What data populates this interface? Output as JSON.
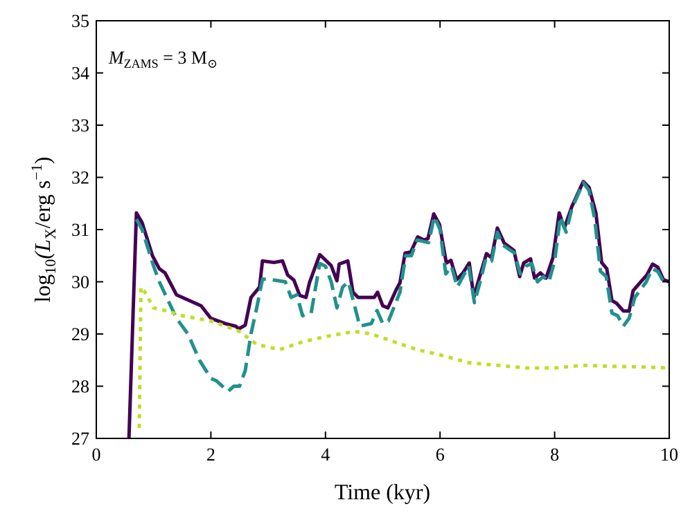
{
  "chart_data": {
    "type": "line",
    "x_label": "Time (kyr)",
    "y_label": {
      "prefix": "log",
      "prefix_sub": "10",
      "open": "(L",
      "sub": "X",
      "mid": "/erg s",
      "sup": "−1",
      "close": ")"
    },
    "annotation": {
      "symbol": "M",
      "symbol_sub": "ZAMS",
      "rest": " = 3 M",
      "unit_sub": "⊙"
    },
    "xlim": [
      0,
      10
    ],
    "xticks": [
      0,
      2,
      4,
      6,
      8,
      10
    ],
    "ylim": [
      27,
      35
    ],
    "yticks": [
      27,
      28,
      29,
      30,
      31,
      32,
      33,
      34,
      35
    ],
    "series": [
      {
        "color": "#440154",
        "dash": "solid",
        "x": [
          0.57,
          0.7,
          0.8,
          0.98,
          1.1,
          1.2,
          1.4,
          1.83,
          2.0,
          2.25,
          2.43,
          2.49,
          2.6,
          2.7,
          2.85,
          2.9,
          3.1,
          3.25,
          3.34,
          3.45,
          3.55,
          3.66,
          3.72,
          3.9,
          4.1,
          4.2,
          4.24,
          4.39,
          4.48,
          4.57,
          4.85,
          4.91,
          5.0,
          5.09,
          5.24,
          5.3,
          5.39,
          5.49,
          5.61,
          5.72,
          5.79,
          5.89,
          5.99,
          6.11,
          6.19,
          6.29,
          6.4,
          6.51,
          6.59,
          6.66,
          6.81,
          6.9,
          7.0,
          7.12,
          7.29,
          7.39,
          7.46,
          7.58,
          7.65,
          7.75,
          7.85,
          7.97,
          8.08,
          8.17,
          8.3,
          8.5,
          8.6,
          8.72,
          8.82,
          8.91,
          9.0,
          9.08,
          9.2,
          9.3,
          9.37,
          9.52,
          9.61,
          9.71,
          9.8,
          9.9,
          10.0
        ],
        "values": [
          27.0,
          31.32,
          31.13,
          30.5,
          30.25,
          30.17,
          29.75,
          29.54,
          29.3,
          29.2,
          29.15,
          29.1,
          29.17,
          29.7,
          29.9,
          30.4,
          30.37,
          30.4,
          30.13,
          30.03,
          29.74,
          29.7,
          29.98,
          30.52,
          30.31,
          30.02,
          30.34,
          30.4,
          29.8,
          29.7,
          29.7,
          29.8,
          29.54,
          29.5,
          29.86,
          29.98,
          30.55,
          30.57,
          30.86,
          30.8,
          30.83,
          31.3,
          31.1,
          30.36,
          30.41,
          30.04,
          30.17,
          30.36,
          29.7,
          29.98,
          30.54,
          30.46,
          31.03,
          30.74,
          30.6,
          30.1,
          30.36,
          30.44,
          30.07,
          30.17,
          30.07,
          30.46,
          31.32,
          31.03,
          31.44,
          31.92,
          31.81,
          31.32,
          30.37,
          30.25,
          29.64,
          29.59,
          29.44,
          29.44,
          29.83,
          30.02,
          30.13,
          30.34,
          30.28,
          30.04,
          30.0
        ]
      },
      {
        "color": "#21918c",
        "dash": "dashed",
        "x": [
          0.7,
          0.8,
          1.0,
          1.1,
          1.4,
          1.6,
          1.8,
          2.0,
          2.1,
          2.3,
          2.4,
          2.5,
          2.6,
          2.7,
          2.8,
          2.9,
          3.0,
          3.3,
          3.4,
          3.5,
          3.6,
          3.75,
          3.9,
          4.0,
          4.1,
          4.2,
          4.3,
          4.4,
          4.6,
          4.8,
          4.9,
          5.0,
          5.1,
          5.3,
          5.4,
          5.5,
          5.6,
          5.8,
          5.9,
          6.0,
          6.1,
          6.2,
          6.3,
          6.4,
          6.5,
          6.6,
          6.7,
          6.8,
          6.9,
          7.0,
          7.1,
          7.3,
          7.4,
          7.5,
          7.6,
          7.7,
          7.8,
          7.9,
          8.0,
          8.1,
          8.2,
          8.3,
          8.5,
          8.6,
          8.7,
          8.8,
          8.9,
          9.0,
          9.1,
          9.2,
          9.3,
          9.4,
          9.6,
          9.7,
          9.8,
          9.9,
          10.0
        ],
        "values": [
          31.2,
          31.0,
          30.3,
          30.0,
          29.3,
          29.0,
          28.5,
          28.15,
          28.1,
          27.9,
          28.0,
          28.0,
          28.3,
          29.0,
          29.5,
          30.05,
          30.05,
          30.0,
          29.7,
          29.75,
          29.35,
          29.4,
          30.35,
          30.3,
          30.0,
          29.5,
          29.9,
          30.0,
          29.15,
          29.2,
          29.45,
          29.2,
          29.25,
          29.8,
          30.5,
          30.5,
          30.8,
          30.75,
          31.25,
          31.0,
          30.15,
          30.3,
          29.9,
          30.1,
          30.3,
          29.6,
          30.0,
          30.45,
          30.4,
          30.95,
          30.7,
          30.55,
          30.15,
          30.3,
          30.35,
          30.0,
          30.1,
          30.0,
          30.4,
          31.25,
          30.95,
          31.4,
          31.9,
          31.75,
          31.2,
          30.2,
          30.1,
          29.4,
          29.35,
          29.15,
          29.3,
          29.7,
          30.0,
          30.25,
          30.2,
          30.0,
          29.95
        ]
      },
      {
        "color": "#bddf26",
        "dash": "dotted",
        "x": [
          0.75,
          0.78,
          0.85,
          1.0,
          1.2,
          1.5,
          2.0,
          2.5,
          2.8,
          3.2,
          3.6,
          4.0,
          4.5,
          4.8,
          5.2,
          5.6,
          6.0,
          6.5,
          7.0,
          7.5,
          8.0,
          8.5,
          9.0,
          9.5,
          10.0
        ],
        "values": [
          27.2,
          29.9,
          29.8,
          29.5,
          29.45,
          29.35,
          29.25,
          29.05,
          28.8,
          28.7,
          28.85,
          28.95,
          29.05,
          29.0,
          28.85,
          28.7,
          28.6,
          28.45,
          28.4,
          28.35,
          28.35,
          28.4,
          28.38,
          28.37,
          28.35
        ]
      }
    ]
  }
}
